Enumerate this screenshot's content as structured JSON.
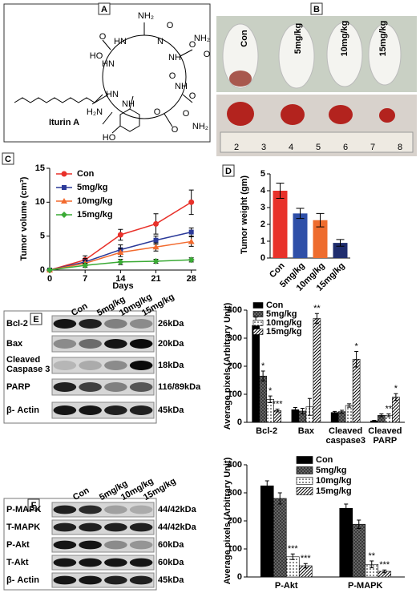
{
  "panel_labels": [
    "A",
    "B",
    "C",
    "D",
    "E",
    "F"
  ],
  "panel_a": {
    "compound": "Iturin A",
    "atoms": [
      "NH₂",
      "O",
      "HN",
      "O",
      "N",
      "O",
      "NH₂",
      "NH",
      "O",
      "HO",
      "HN",
      "O",
      "NH",
      "O",
      "O",
      "HN",
      "H₂N",
      "O",
      "NH",
      "NH₂",
      "O",
      "HO"
    ]
  },
  "panel_b": {
    "mice": [
      "Con",
      "5mg/kg",
      "10mg/kg",
      "15mg/kg"
    ],
    "ruler": [
      "2",
      "3",
      "4",
      "5",
      "6",
      "7",
      "8"
    ]
  },
  "panel_e_blot": {
    "lanes": [
      "Con",
      "5mg/kg",
      "10mg/kg",
      "15mg/kg"
    ],
    "rows": [
      "Bcl-2",
      "Bax",
      "Cleaved Caspase 3",
      "PARP",
      "β- Actin"
    ],
    "sizes": [
      "26kDa",
      "20kDa",
      "18kDa",
      "116/89kDa",
      "45kDa"
    ]
  },
  "panel_f_blot": {
    "lanes": [
      "Con",
      "5mg/kg",
      "10mg/kg",
      "15mg/kg"
    ],
    "rows": [
      "P-MAPK",
      "T-MAPK",
      "P-Akt",
      "T-Akt",
      "β- Actin"
    ],
    "sizes": [
      "44/42kDa",
      "44/42kDa",
      "60kDa",
      "60kDa",
      "45kDa"
    ]
  },
  "chart_data": [
    {
      "type": "line",
      "x_label": "Days",
      "y_label": "Tumor volume (cm³)",
      "x": [
        0,
        7,
        14,
        21,
        28
      ],
      "xlim": [
        0,
        29
      ],
      "xticks": [
        0,
        7,
        14,
        21,
        28
      ],
      "ylim": [
        0,
        15
      ],
      "yticks": [
        0,
        5,
        10,
        15
      ],
      "legend": "upper left",
      "series": [
        {
          "name": "Con",
          "color": "#e8312a",
          "marker": "circle",
          "values": [
            0,
            1.5,
            5.2,
            6.8,
            10
          ],
          "errors": [
            0.2,
            0.6,
            0.8,
            1.5,
            1.8
          ]
        },
        {
          "name": "5mg/kg",
          "color": "#2b3a99",
          "marker": "square",
          "values": [
            0,
            1.2,
            3,
            4.4,
            5.6
          ],
          "errors": [
            0.2,
            0.5,
            0.7,
            0.6,
            0.6
          ]
        },
        {
          "name": "10mg/kg",
          "color": "#f26a2e",
          "marker": "triangle",
          "values": [
            0,
            1,
            2.6,
            3.4,
            4.2
          ],
          "errors": [
            0.2,
            0.4,
            0.6,
            0.6,
            0.7
          ]
        },
        {
          "name": "15mg/kg",
          "color": "#3aaa35",
          "marker": "diamond",
          "values": [
            0,
            0.7,
            1.2,
            1.3,
            1.5
          ],
          "errors": [
            0.1,
            0.3,
            0.4,
            0.3,
            0.3
          ]
        }
      ]
    },
    {
      "type": "bar",
      "y_label": "Tumor weight (gm)",
      "categories": [
        "Con",
        "5mg/kg",
        "10mg/kg",
        "15mg/kg"
      ],
      "values": [
        4.0,
        2.65,
        2.25,
        0.9
      ],
      "errors": [
        0.45,
        0.3,
        0.4,
        0.2
      ],
      "colors": [
        "#e8312a",
        "#2e4fa8",
        "#ee6c2e",
        "#1f2d6e"
      ],
      "ylim": [
        0,
        5
      ],
      "yticks": [
        0,
        1,
        2,
        3,
        4,
        5
      ]
    },
    {
      "type": "grouped_bar",
      "y_label": "Average pixels (Arbitrary Unit)",
      "categories": [
        "Bcl-2",
        "Bax",
        "Cleaved caspase3",
        "Cleaved PARP"
      ],
      "ylim": [
        0,
        400
      ],
      "yticks": [
        0,
        100,
        200,
        300,
        400
      ],
      "legend": "upper left",
      "series": [
        {
          "name": "Con",
          "color": "#000000",
          "pattern": "solid",
          "values": [
            345,
            45,
            35,
            5
          ],
          "errors": [
            30,
            8,
            4,
            2
          ],
          "significance": [
            null,
            null,
            null,
            null
          ]
        },
        {
          "name": "5mg/kg",
          "color": "#333333",
          "pattern": "dense",
          "values": [
            165,
            40,
            38,
            25
          ],
          "errors": [
            18,
            10,
            5,
            5
          ],
          "significance": [
            "*",
            null,
            null,
            null
          ]
        },
        {
          "name": "10mg/kg",
          "color": "#000000",
          "pattern": "dots",
          "values": [
            82,
            55,
            60,
            25
          ],
          "errors": [
            12,
            30,
            6,
            5
          ],
          "significance": [
            "*",
            null,
            null,
            "**"
          ]
        },
        {
          "name": "15mg/kg",
          "color": "#000000",
          "pattern": "hatch",
          "values": [
            42,
            370,
            225,
            90
          ],
          "errors": [
            5,
            18,
            28,
            12
          ],
          "significance": [
            "***",
            "**",
            "*",
            "*"
          ]
        }
      ]
    },
    {
      "type": "grouped_bar",
      "y_label": "Average pixels (Arbitrary Unit)",
      "categories": [
        "P-Akt",
        "P-MAPK"
      ],
      "ylim": [
        0,
        400
      ],
      "yticks": [
        0,
        100,
        200,
        300,
        400
      ],
      "legend": "upper right",
      "series": [
        {
          "name": "Con",
          "color": "#000000",
          "pattern": "solid",
          "values": [
            325,
            245
          ],
          "errors": [
            18,
            15
          ],
          "significance": [
            null,
            null
          ]
        },
        {
          "name": "5mg/kg",
          "color": "#333333",
          "pattern": "dense",
          "values": [
            280,
            188
          ],
          "errors": [
            20,
            15
          ],
          "significance": [
            null,
            null
          ]
        },
        {
          "name": "10mg/kg",
          "color": "#000000",
          "pattern": "dots",
          "values": [
            72,
            45
          ],
          "errors": [
            10,
            12
          ],
          "significance": [
            "***",
            "**"
          ]
        },
        {
          "name": "15mg/kg",
          "color": "#000000",
          "pattern": "hatch",
          "values": [
            40,
            20
          ],
          "errors": [
            8,
            5
          ],
          "significance": [
            "***",
            "***"
          ]
        }
      ]
    }
  ]
}
